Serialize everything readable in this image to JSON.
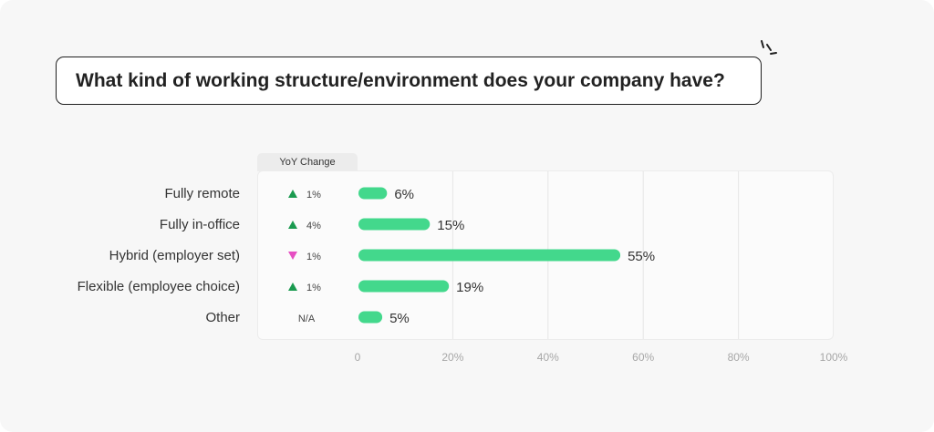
{
  "question": "What kind of working structure/environment does your company have?",
  "yoy_header": "YoY Change",
  "colors": {
    "bar": "#43d88c",
    "up": "#1a9a4f",
    "down": "#e64fc2",
    "grid": "#e6e6e6"
  },
  "chart_data": {
    "type": "bar",
    "orientation": "horizontal",
    "title": "What kind of working structure/environment does your company have?",
    "categories": [
      "Fully remote",
      "Fully in-office",
      "Hybrid (employer set)",
      "Flexible (employee choice)",
      "Other"
    ],
    "values": [
      6,
      15,
      55,
      19,
      5
    ],
    "value_labels": [
      "6%",
      "15%",
      "55%",
      "19%",
      "5%"
    ],
    "yoy_change": [
      {
        "direction": "up",
        "text": "1%"
      },
      {
        "direction": "up",
        "text": "4%"
      },
      {
        "direction": "down",
        "text": "1%"
      },
      {
        "direction": "up",
        "text": "1%"
      },
      {
        "direction": "none",
        "text": "N/A"
      }
    ],
    "xlim": [
      0,
      100
    ],
    "xticks": [
      0,
      20,
      40,
      60,
      80,
      100
    ],
    "xtick_labels": [
      "0",
      "20%",
      "40%",
      "60%",
      "80%",
      "100%"
    ],
    "grid": true
  }
}
